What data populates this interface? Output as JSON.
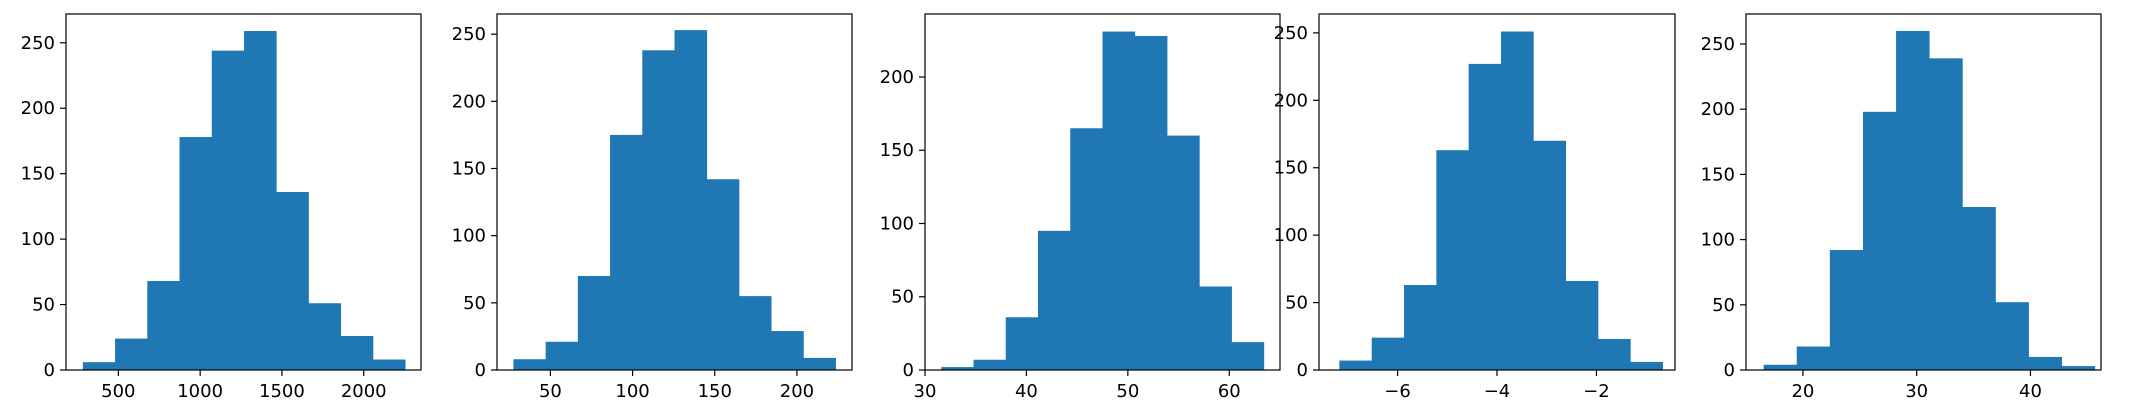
{
  "colors": {
    "bar": "#1f77b4",
    "axis": "#000000",
    "background": "#ffffff"
  },
  "chart_data": [
    {
      "type": "bar",
      "title": "",
      "xlabel": "",
      "ylabel": "",
      "xlim": [
        180,
        2350
      ],
      "ylim": [
        0,
        272
      ],
      "grid": false,
      "bin_edges": [
        283,
        480,
        677,
        874,
        1071,
        1268,
        1465,
        1662,
        1859,
        2056,
        2253
      ],
      "values": [
        6,
        24,
        68,
        178,
        244,
        259,
        136,
        51,
        26,
        8
      ],
      "xticks": [
        500,
        1000,
        1500,
        2000
      ],
      "xtick_labels": [
        "500",
        "1000",
        "1500",
        "2000"
      ],
      "yticks": [
        0,
        50,
        100,
        150,
        200,
        250
      ],
      "ytick_labels": [
        "0",
        "50",
        "100",
        "150",
        "200",
        "250"
      ]
    },
    {
      "type": "bar",
      "title": "",
      "xlabel": "",
      "ylabel": "",
      "xlim": [
        17.5,
        233.5
      ],
      "ylim": [
        0,
        265
      ],
      "grid": false,
      "bin_edges": [
        27.5,
        47.1,
        66.7,
        86.3,
        105.9,
        125.5,
        145.1,
        164.7,
        184.3,
        203.9,
        223.5
      ],
      "values": [
        8,
        21,
        70,
        175,
        238,
        253,
        142,
        55,
        29,
        9
      ],
      "xticks": [
        50,
        100,
        150,
        200
      ],
      "xtick_labels": [
        "50",
        "100",
        "150",
        "200"
      ],
      "yticks": [
        0,
        50,
        100,
        150,
        200,
        250
      ],
      "ytick_labels": [
        "0",
        "50",
        "100",
        "150",
        "200",
        "250"
      ]
    },
    {
      "type": "bar",
      "title": "",
      "xlabel": "",
      "ylabel": "",
      "xlim": [
        30.0,
        65.0
      ],
      "ylim": [
        0,
        243
      ],
      "grid": false,
      "bin_edges": [
        31.6,
        34.78,
        37.96,
        41.14,
        44.32,
        47.5,
        50.68,
        53.86,
        57.04,
        60.22,
        63.4
      ],
      "values": [
        2,
        7,
        36,
        95,
        165,
        231,
        228,
        160,
        57,
        19
      ],
      "xticks": [
        30,
        40,
        50,
        60
      ],
      "xtick_labels": [
        "30",
        "40",
        "50",
        "60"
      ],
      "yticks": [
        0,
        50,
        100,
        150,
        200
      ],
      "ytick_labels": [
        "0",
        "50",
        "100",
        "150",
        "200"
      ]
    },
    {
      "type": "bar",
      "title": "",
      "xlabel": "",
      "ylabel": "",
      "xlim": [
        -7.58,
        -0.42
      ],
      "ylim": [
        0,
        264
      ],
      "grid": false,
      "bin_edges": [
        -7.17,
        -6.52,
        -5.87,
        -5.22,
        -4.57,
        -3.92,
        -3.27,
        -2.62,
        -1.97,
        -1.32,
        -0.67
      ],
      "values": [
        7,
        24,
        63,
        163,
        227,
        251,
        170,
        66,
        23,
        6
      ],
      "xticks": [
        -6,
        -4,
        -2
      ],
      "xtick_labels": [
        "−6",
        "−4",
        "−2"
      ],
      "yticks": [
        0,
        50,
        100,
        150,
        200,
        250
      ],
      "ytick_labels": [
        "0",
        "50",
        "100",
        "150",
        "200",
        "250"
      ]
    },
    {
      "type": "bar",
      "title": "",
      "xlabel": "",
      "ylabel": "",
      "xlim": [
        15.0,
        46.2
      ],
      "ylim": [
        0,
        273
      ],
      "grid": false,
      "bin_edges": [
        16.55,
        19.46,
        22.37,
        25.28,
        28.19,
        31.1,
        34.01,
        36.92,
        39.83,
        42.74,
        45.65
      ],
      "values": [
        4,
        18,
        92,
        198,
        260,
        239,
        125,
        52,
        10,
        3
      ],
      "xticks": [
        20,
        30,
        40
      ],
      "xtick_labels": [
        "20",
        "30",
        "40"
      ],
      "yticks": [
        0,
        50,
        100,
        150,
        200,
        250
      ],
      "ytick_labels": [
        "0",
        "50",
        "100",
        "150",
        "200",
        "250"
      ]
    }
  ]
}
